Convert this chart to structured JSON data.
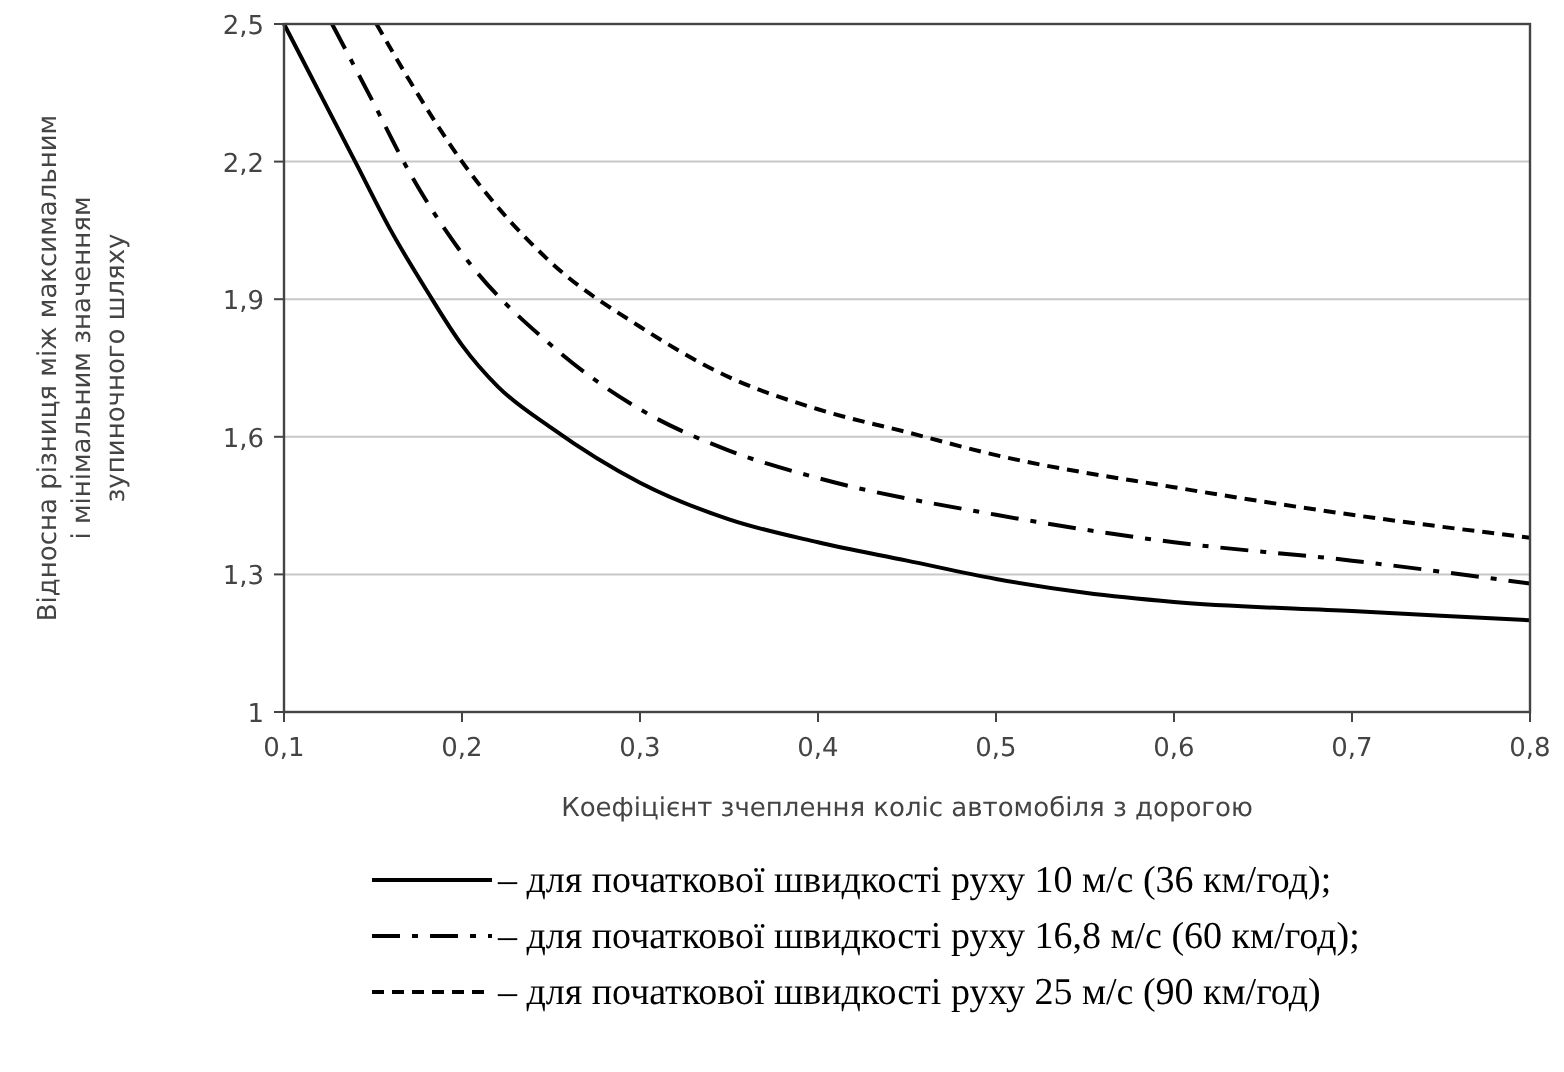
{
  "chart_data": {
    "type": "line",
    "xlabel": "Коефіцієнт зчеплення коліс автомобіля з дорогою",
    "ylabel": "Відносна різниця між максимальним\nі мінімальним значенням\nзупиночного шляху",
    "xlim": [
      0.1,
      0.8
    ],
    "xticks": [
      {
        "value": 0.1,
        "label": "0,1"
      },
      {
        "value": 0.2,
        "label": "0,2"
      },
      {
        "value": 0.3,
        "label": "0,3"
      },
      {
        "value": 0.4,
        "label": "0,4"
      },
      {
        "value": 0.5,
        "label": "0,5"
      },
      {
        "value": 0.6,
        "label": "0,6"
      },
      {
        "value": 0.7,
        "label": "0,7"
      },
      {
        "value": 0.8,
        "label": "0,8"
      }
    ],
    "ylim": [
      1,
      2.5
    ],
    "yticks": [
      1,
      {
        "value": 1.3,
        "label": "1,3"
      },
      {
        "value": 1.6,
        "label": "1,6"
      },
      {
        "value": 1.9,
        "label": "1,9"
      },
      {
        "value": 2.2,
        "label": "2,2"
      },
      {
        "value": 2.5,
        "label": "2,5"
      }
    ],
    "grid": "y",
    "legend": "bottom",
    "marker": "none",
    "series": [
      {
        "name": "– для початкової швидкості руху 10 м/с (36 км/год);",
        "color": "#000000",
        "line_style": "solid",
        "x": [
          0.1,
          0.12,
          0.14,
          0.16,
          0.18,
          0.2,
          0.22,
          0.25,
          0.3,
          0.35,
          0.4,
          0.45,
          0.5,
          0.55,
          0.6,
          0.7,
          0.8
        ],
        "values": [
          2.5,
          2.35,
          2.2,
          2.05,
          1.92,
          1.8,
          1.71,
          1.62,
          1.5,
          1.42,
          1.37,
          1.33,
          1.29,
          1.26,
          1.24,
          1.22,
          1.2
        ]
      },
      {
        "name": "– для початкової швидкості руху 16,8 м/с (60 км/год);",
        "color": "#000000",
        "line_style": "dashdot",
        "x": [
          0.127,
          0.15,
          0.17,
          0.2,
          0.25,
          0.3,
          0.35,
          0.4,
          0.5,
          0.6,
          0.7,
          0.8
        ],
        "values": [
          2.5,
          2.33,
          2.18,
          2.0,
          1.8,
          1.66,
          1.57,
          1.51,
          1.43,
          1.37,
          1.33,
          1.28
        ]
      },
      {
        "name": "– для початкової швидкості руху 25 м/с (90 км/год)",
        "color": "#000000",
        "line_style": "dashed",
        "x": [
          0.152,
          0.17,
          0.2,
          0.25,
          0.3,
          0.35,
          0.4,
          0.45,
          0.5,
          0.6,
          0.7,
          0.8
        ],
        "values": [
          2.5,
          2.38,
          2.2,
          1.98,
          1.84,
          1.73,
          1.66,
          1.61,
          1.56,
          1.49,
          1.43,
          1.38
        ]
      }
    ]
  }
}
